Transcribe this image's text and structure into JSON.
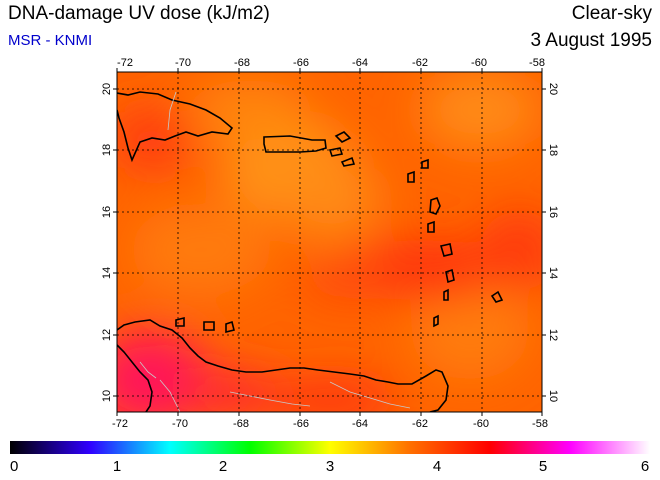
{
  "header": {
    "title": "DNA-damage UV dose (kJ/m2)",
    "source": "MSR - KNMI",
    "condition": "Clear-sky",
    "date": "3 August 1995"
  },
  "map": {
    "lon_range": [
      -72,
      -58
    ],
    "lat_range": [
      9.5,
      20.5
    ],
    "lon_ticks": [
      "-72",
      "-70",
      "-68",
      "-66",
      "-64",
      "-62",
      "-60",
      "-58"
    ],
    "lat_ticks": [
      "10",
      "12",
      "14",
      "16",
      "18",
      "20"
    ],
    "dominant_value_range": [
      3.8,
      4.9
    ],
    "colors": {
      "field_dark_orange": "#ff5a00",
      "field_light_orange": "#ff8c10",
      "field_red": "#ff2a10",
      "field_magenta": "#ff1060",
      "coastline": "#000000",
      "borders": "#c8c8c8"
    }
  },
  "colorbar": {
    "labels": [
      "0",
      "1",
      "2",
      "3",
      "4",
      "5",
      "6"
    ],
    "stops": [
      "#000000",
      "#3000ff",
      "#00ffff",
      "#00ff00",
      "#ffff00",
      "#ff7000",
      "#ff0000",
      "#ff00ff",
      "#ffffff"
    ]
  }
}
